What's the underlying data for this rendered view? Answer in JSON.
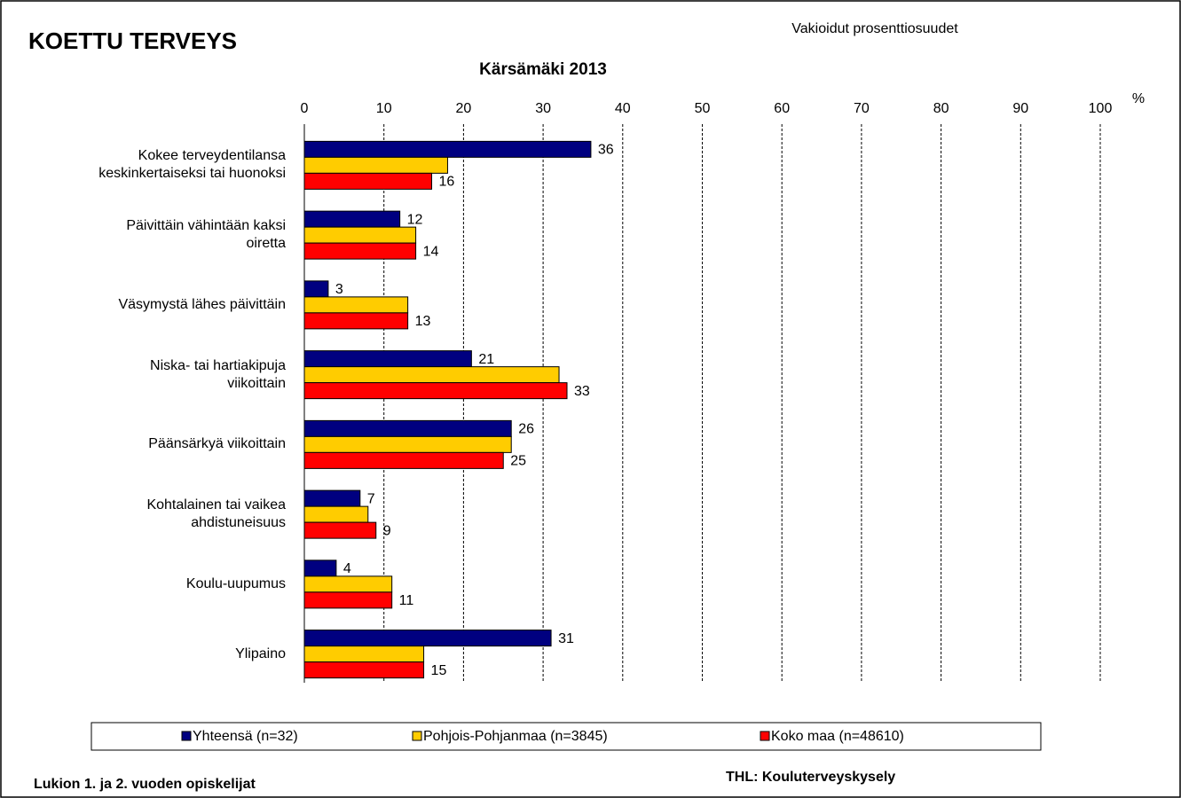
{
  "chart_data": {
    "type": "hbar",
    "title": "KOETTU TERVEYS",
    "subtitle": "Kärsämäki 2013",
    "note": "Vakioidut prosenttiosuudet",
    "unit_label": "%",
    "categories": [
      "Kokee terveydentilansa\nkeskinkertaiseksi tai huonoksi",
      "Päivittäin vähintään kaksi\noiretta",
      "Väsymystä lähes päivittäin",
      "Niska- tai hartiakipuja\nviikoittain",
      "Päänsärkyä viikoittain",
      "Kohtalainen tai vaikea\nahdistuneisuus",
      "Koulu-uupumus",
      "Ylipaino"
    ],
    "series": [
      {
        "name": "Yhteensä (n=32)",
        "color": "#000080",
        "show_labels": true,
        "values": [
          36,
          12,
          3,
          21,
          26,
          7,
          4,
          31
        ]
      },
      {
        "name": "Pohjois-Pohjanmaa (n=3845)",
        "color": "#ffcc00",
        "show_labels": false,
        "values": [
          18,
          14,
          13,
          32,
          26,
          8,
          11,
          15
        ]
      },
      {
        "name": "Koko maa (n=48610)",
        "color": "#ff0000",
        "show_labels": true,
        "values": [
          16,
          14,
          13,
          33,
          25,
          9,
          11,
          15
        ]
      }
    ],
    "xlim": [
      0,
      100
    ],
    "xticks": [
      0,
      10,
      20,
      30,
      40,
      50,
      60,
      70,
      80,
      90,
      100
    ],
    "grid": true,
    "legend": "bottom",
    "footer_left": "Lukion 1. ja 2. vuoden opiskelijat",
    "footer_right": "THL: Kouluterveyskysely"
  }
}
